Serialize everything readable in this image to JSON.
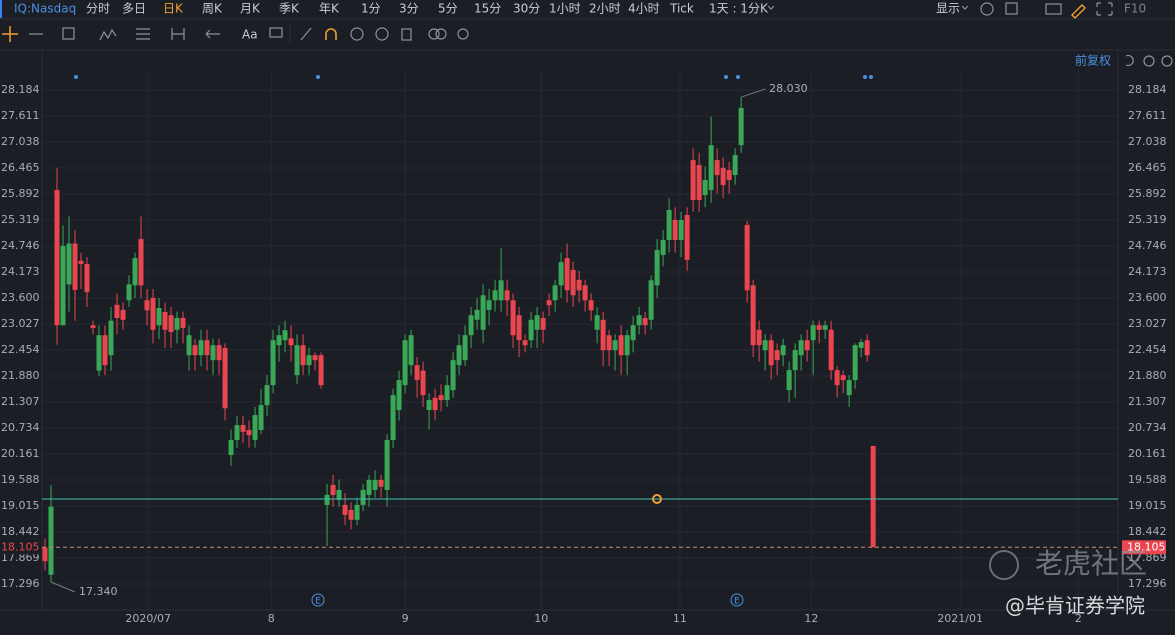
{
  "toolbar": {
    "symbol": "IQ:Nasdaq",
    "periods": [
      "分时",
      "多日",
      "日K",
      "周K",
      "月K",
      "季K",
      "年K",
      "1分",
      "3分",
      "5分",
      "15分",
      "30分",
      "1小时",
      "2小时",
      "4小时",
      "Tick"
    ],
    "active_period_index": 2,
    "period_setting": "1天 : 1分K",
    "display": "显示",
    "f10": "F10",
    "font_tool": "Aa"
  },
  "adjust": "前复权",
  "watermark": {
    "brand": "老虎社区",
    "author": "@毕肯证券学院"
  },
  "events": [
    {
      "label": "E"
    },
    {
      "label": "E"
    }
  ],
  "chart_data": {
    "type": "candlestick",
    "up_color": "#3aa857",
    "down_color": "#e9464f",
    "open": [
      18.1,
      17.5,
      25.98,
      23.0,
      23.9,
      24.8,
      24.42,
      24.35,
      23.0,
      22.0,
      22.78,
      22.34,
      23.45,
      23.34,
      23.55,
      23.88,
      24.9,
      23.55,
      23.6,
      23.0,
      23.29,
      23.22,
      22.9,
      23.16,
      22.34,
      22.56,
      22.34,
      22.67,
      22.23,
      22.56,
      22.5,
      20.14,
      20.47,
      20.8,
      20.69,
      20.47,
      20.69,
      21.24,
      21.68,
      22.56,
      22.67,
      22.71,
      21.9,
      22.56,
      22.12,
      22.34,
      22.34,
      19.04,
      19.48,
      19.15,
      19.04,
      18.93,
      18.71,
      19.04,
      19.26,
      19.37,
      19.59,
      19.37,
      20.47,
      21.13,
      21.68,
      22.12,
      22.12,
      22.0,
      21.13,
      21.4,
      21.46,
      21.35,
      21.57,
      22.12,
      22.23,
      22.78,
      23.12,
      22.9,
      23.34,
      23.55,
      23.55,
      23.77,
      23.55,
      23.22,
      22.67,
      22.67,
      22.9,
      23.16,
      23.55,
      23.55,
      23.88,
      24.48,
      24.22,
      24.0,
      23.88,
      23.55,
      22.9,
      23.12,
      22.78,
      22.45,
      22.78,
      22.34,
      22.67,
      23.0,
      23.16,
      23.12,
      23.88,
      24.55,
      24.88,
      25.32,
      24.88,
      25.43,
      26.64,
      26.53,
      25.87,
      25.98,
      26.64,
      26.47,
      26.42,
      26.31,
      26.97,
      25.21,
      23.88,
      22.9,
      22.45,
      22.67,
      22.45,
      22.34,
      21.57,
      22.01,
      22.34,
      22.67,
      22.67,
      23.0,
      22.9,
      22.9,
      22.01,
      21.9,
      21.46,
      21.79,
      22.5,
      22.67,
      20.34
    ],
    "high": [
      18.3,
      19.48,
      26.47,
      25.2,
      25.4,
      25.1,
      24.6,
      24.5,
      23.1,
      23.0,
      23.0,
      23.4,
      23.7,
      23.5,
      24.1,
      24.6,
      25.4,
      23.8,
      23.8,
      23.6,
      23.5,
      23.4,
      23.3,
      23.3,
      23.0,
      22.7,
      22.9,
      22.9,
      22.7,
      22.7,
      22.6,
      20.7,
      21.0,
      21.0,
      20.9,
      21.2,
      21.6,
      21.9,
      22.9,
      23.0,
      23.1,
      23.0,
      22.8,
      22.8,
      22.5,
      22.4,
      22.4,
      19.5,
      19.7,
      19.6,
      19.3,
      19.1,
      19.2,
      19.5,
      19.7,
      19.8,
      19.7,
      20.6,
      21.6,
      22.0,
      22.8,
      22.9,
      22.3,
      22.2,
      21.5,
      21.6,
      21.7,
      21.9,
      22.4,
      22.8,
      23.0,
      23.4,
      23.6,
      23.9,
      23.8,
      24.0,
      24.7,
      24.0,
      23.7,
      23.4,
      22.8,
      23.3,
      23.4,
      23.3,
      23.7,
      24.0,
      24.6,
      24.8,
      24.4,
      24.2,
      24.0,
      23.7,
      23.4,
      23.3,
      22.9,
      22.8,
      23.0,
      22.9,
      23.2,
      23.4,
      23.3,
      24.1,
      24.9,
      25.1,
      25.8,
      25.6,
      25.5,
      25.6,
      26.9,
      26.8,
      26.5,
      27.6,
      26.9,
      26.7,
      26.6,
      26.9,
      28.03,
      25.3,
      24.0,
      23.1,
      22.8,
      22.8,
      22.6,
      22.7,
      22.2,
      22.6,
      22.8,
      22.9,
      23.1,
      23.1,
      23.1,
      23.1,
      22.1,
      22.0,
      21.9,
      22.6,
      22.7,
      22.8,
      20.34
    ],
    "low": [
      17.6,
      17.34,
      22.57,
      23.0,
      23.3,
      23.1,
      23.8,
      23.4,
      22.8,
      21.88,
      21.9,
      22.0,
      22.8,
      22.9,
      23.4,
      23.6,
      23.6,
      23.0,
      22.6,
      22.7,
      22.5,
      22.5,
      22.6,
      22.6,
      22.0,
      22.0,
      22.1,
      22.0,
      21.9,
      21.9,
      20.9,
      19.9,
      20.3,
      20.4,
      20.3,
      20.3,
      20.6,
      21.0,
      21.5,
      22.2,
      22.4,
      22.2,
      21.7,
      21.9,
      21.9,
      22.0,
      21.6,
      18.13,
      19.0,
      19.0,
      18.6,
      18.5,
      18.6,
      18.9,
      19.0,
      19.2,
      19.2,
      19.0,
      20.3,
      20.9,
      21.5,
      21.9,
      21.4,
      21.2,
      20.7,
      20.9,
      21.1,
      21.2,
      21.4,
      21.9,
      22.1,
      22.5,
      22.9,
      22.6,
      23.0,
      23.3,
      23.3,
      23.2,
      22.5,
      22.3,
      22.4,
      22.5,
      22.5,
      22.6,
      23.2,
      23.3,
      23.6,
      23.5,
      23.4,
      23.5,
      23.3,
      23.1,
      22.6,
      22.1,
      22.1,
      22.0,
      21.9,
      21.9,
      22.4,
      22.8,
      22.8,
      22.9,
      23.6,
      24.3,
      24.6,
      24.6,
      24.5,
      24.2,
      25.5,
      25.5,
      25.6,
      25.7,
      25.9,
      25.8,
      25.9,
      26.1,
      26.8,
      23.5,
      22.3,
      22.2,
      22.0,
      21.8,
      21.9,
      22.1,
      21.3,
      21.4,
      22.0,
      22.2,
      21.9,
      22.6,
      22.7,
      21.8,
      21.4,
      21.5,
      21.2,
      21.6,
      22.3,
      22.2,
      18.105
    ],
    "close": [
      17.8,
      19.0,
      23.0,
      24.75,
      24.8,
      23.78,
      24.35,
      23.73,
      22.94,
      22.78,
      22.12,
      23.1,
      23.16,
      23.12,
      23.9,
      24.48,
      23.88,
      23.33,
      22.9,
      23.38,
      22.9,
      22.85,
      23.16,
      22.94,
      22.78,
      22.34,
      22.67,
      22.34,
      22.56,
      22.23,
      21.17,
      20.47,
      20.8,
      20.65,
      20.58,
      21.02,
      21.24,
      21.68,
      22.67,
      22.78,
      22.89,
      22.56,
      22.56,
      22.12,
      22.34,
      22.23,
      21.68,
      19.26,
      19.26,
      19.37,
      18.82,
      18.71,
      19.04,
      19.37,
      19.59,
      19.59,
      19.44,
      20.47,
      21.46,
      21.79,
      22.67,
      22.78,
      21.79,
      21.46,
      21.35,
      21.13,
      21.35,
      21.68,
      22.23,
      22.56,
      22.78,
      23.22,
      23.34,
      23.66,
      23.55,
      23.77,
      23.99,
      23.55,
      22.78,
      22.67,
      22.56,
      23.12,
      23.22,
      22.9,
      23.44,
      23.88,
      24.39,
      23.77,
      23.66,
      23.77,
      23.55,
      23.33,
      23.22,
      22.45,
      22.45,
      22.67,
      22.34,
      22.78,
      23.0,
      23.22,
      23.0,
      23.99,
      24.66,
      24.88,
      25.54,
      24.88,
      25.32,
      24.44,
      25.76,
      25.76,
      26.2,
      26.97,
      26.31,
      26.09,
      26.2,
      26.75,
      27.79,
      23.77,
      22.56,
      22.56,
      22.67,
      22.12,
      22.23,
      22.56,
      22.01,
      22.45,
      22.67,
      22.45,
      23.0,
      22.9,
      23.0,
      22.01,
      21.68,
      21.79,
      21.79,
      22.56,
      22.63,
      22.34,
      18.105
    ],
    "xlim": [
      -0.5,
      178.8
    ],
    "xticks": [
      {
        "value": 17.2,
        "label": "2020/07"
      },
      {
        "value": 37.7,
        "label": "8"
      },
      {
        "value": 60,
        "label": "9"
      },
      {
        "value": 82.7,
        "label": "10"
      },
      {
        "value": 105.8,
        "label": "11"
      },
      {
        "value": 127.7,
        "label": "12"
      },
      {
        "value": 152.5,
        "label": "2021/01"
      },
      {
        "value": 172.2,
        "label": "2"
      }
    ],
    "ylim": [
      16.723,
      28.626
    ],
    "yticks": [
      28.184,
      27.611,
      27.038,
      26.465,
      25.892,
      25.319,
      24.746,
      24.173,
      {
        "value": 23.6,
        "label": "23.600"
      },
      23.027,
      22.454,
      {
        "value": 21.88,
        "label": "21.880"
      },
      21.307,
      20.734,
      20.161,
      19.588,
      19.015,
      18.442,
      17.869,
      17.296
    ],
    "grid": true,
    "high_label": {
      "value": 28.03,
      "label": "28.030"
    },
    "low_label": {
      "value": 17.34,
      "label": "17.340"
    },
    "last_price": 18.105,
    "drawn_line": 19.17
  }
}
